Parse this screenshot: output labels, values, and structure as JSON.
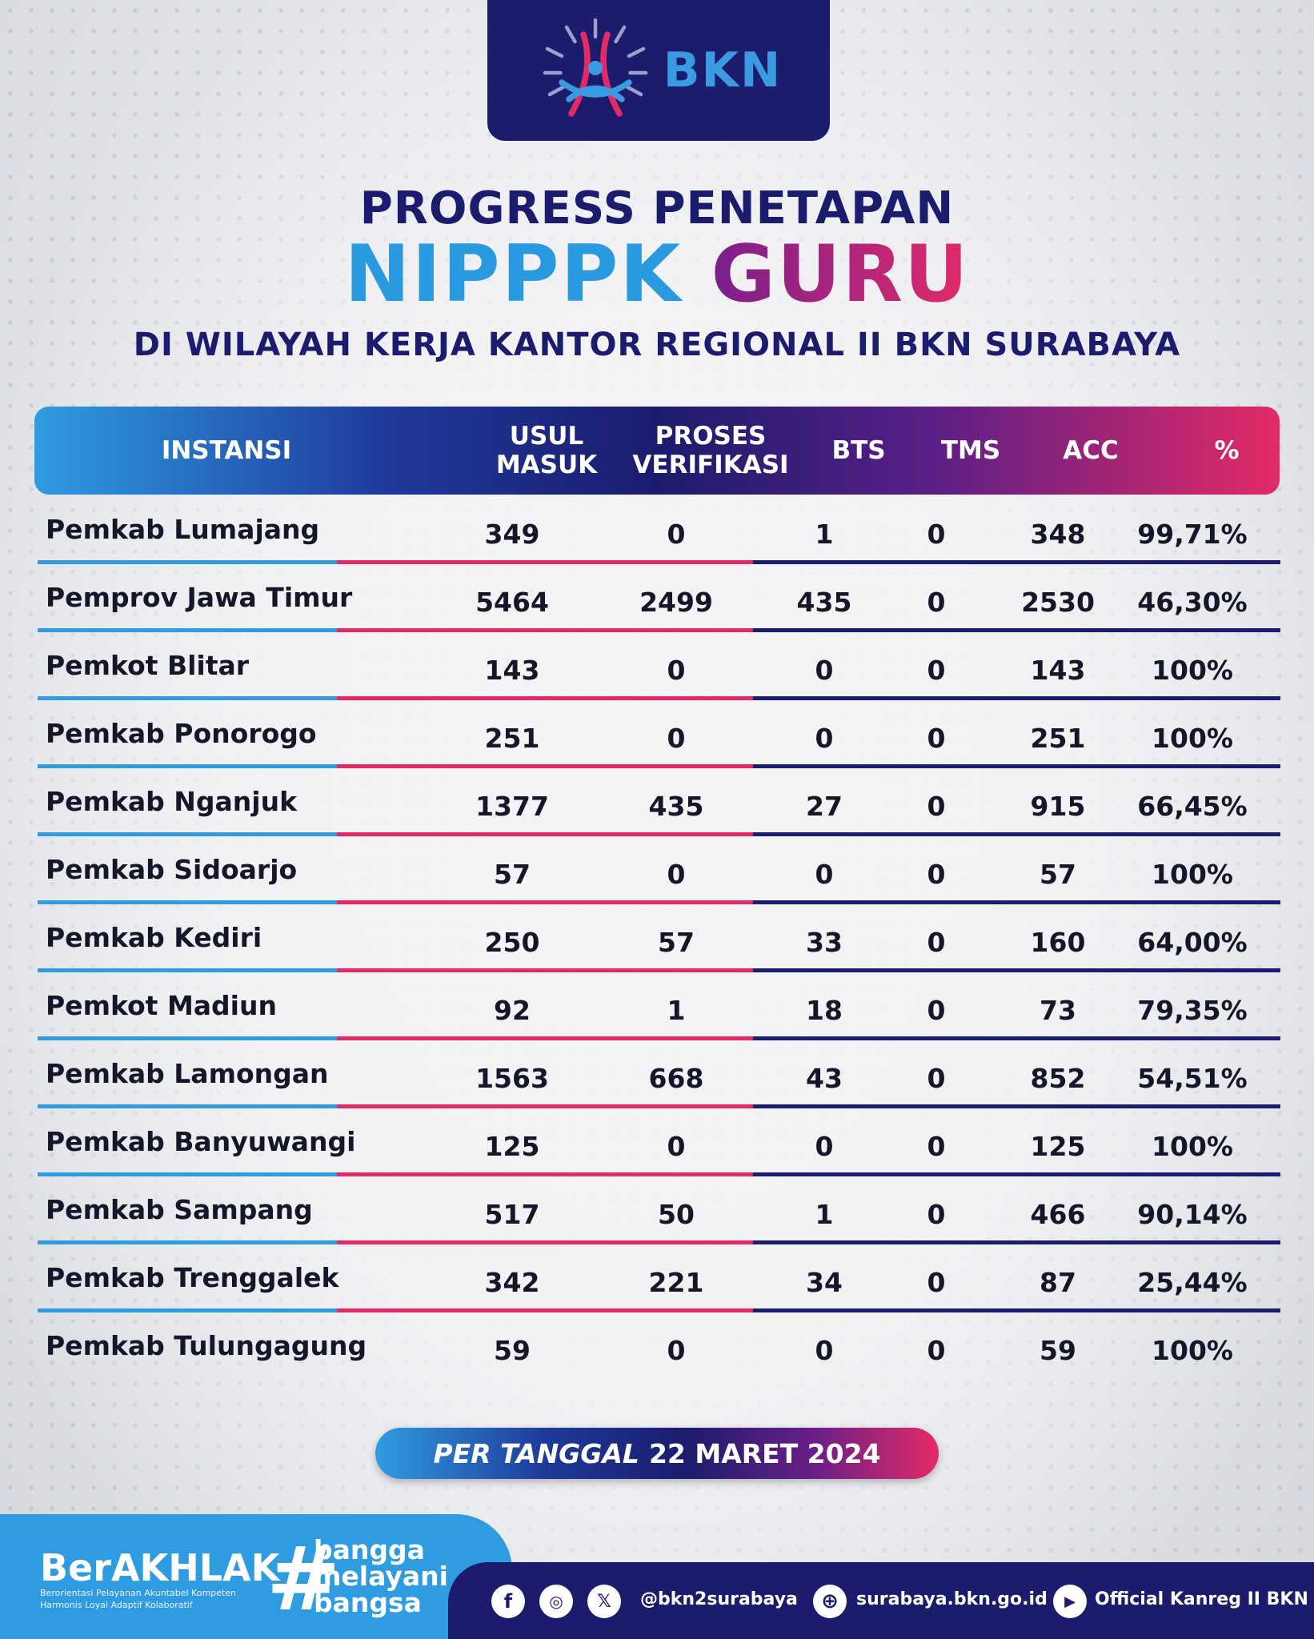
{
  "logo": {
    "text": "BKN"
  },
  "title": {
    "line1": "PROGRESS PENETAPAN",
    "line2a": "NIPPPK",
    "line2b": "GURU",
    "line3": "DI WILAYAH KERJA KANTOR REGIONAL II BKN SURABAYA"
  },
  "table": {
    "headers": {
      "instansi": "INSTANSI",
      "usul_1": "USUL",
      "usul_2": "MASUK",
      "proses_1": "PROSES",
      "proses_2": "VERIFIKASI",
      "bts": "BTS",
      "tms": "TMS",
      "acc": "ACC",
      "pct": "%"
    },
    "rows": [
      {
        "instansi": "Pemkab Lumajang",
        "usul": "349",
        "proses": "0",
        "bts": "1",
        "tms": "0",
        "acc": "348",
        "pct": "99,71%"
      },
      {
        "instansi": "Pemprov Jawa Timur",
        "usul": "5464",
        "proses": "2499",
        "bts": "435",
        "tms": "0",
        "acc": "2530",
        "pct": "46,30%"
      },
      {
        "instansi": "Pemkot Blitar",
        "usul": "143",
        "proses": "0",
        "bts": "0",
        "tms": "0",
        "acc": "143",
        "pct": "100%"
      },
      {
        "instansi": "Pemkab Ponorogo",
        "usul": "251",
        "proses": "0",
        "bts": "0",
        "tms": "0",
        "acc": "251",
        "pct": "100%"
      },
      {
        "instansi": "Pemkab Nganjuk",
        "usul": "1377",
        "proses": "435",
        "bts": "27",
        "tms": "0",
        "acc": "915",
        "pct": "66,45%"
      },
      {
        "instansi": "Pemkab Sidoarjo",
        "usul": "57",
        "proses": "0",
        "bts": "0",
        "tms": "0",
        "acc": "57",
        "pct": "100%"
      },
      {
        "instansi": "Pemkab Kediri",
        "usul": "250",
        "proses": "57",
        "bts": "33",
        "tms": "0",
        "acc": "160",
        "pct": "64,00%"
      },
      {
        "instansi": "Pemkot Madiun",
        "usul": "92",
        "proses": "1",
        "bts": "18",
        "tms": "0",
        "acc": "73",
        "pct": "79,35%"
      },
      {
        "instansi": "Pemkab Lamongan",
        "usul": "1563",
        "proses": "668",
        "bts": "43",
        "tms": "0",
        "acc": "852",
        "pct": "54,51%"
      },
      {
        "instansi": "Pemkab Banyuwangi",
        "usul": "125",
        "proses": "0",
        "bts": "0",
        "tms": "0",
        "acc": "125",
        "pct": "100%"
      },
      {
        "instansi": "Pemkab Sampang",
        "usul": "517",
        "proses": "50",
        "bts": "1",
        "tms": "0",
        "acc": "466",
        "pct": "90,14%"
      },
      {
        "instansi": "Pemkab Trenggalek",
        "usul": "342",
        "proses": "221",
        "bts": "34",
        "tms": "0",
        "acc": "87",
        "pct": "25,44%"
      },
      {
        "instansi": "Pemkab Tulungagung",
        "usul": "59",
        "proses": "0",
        "bts": "0",
        "tms": "0",
        "acc": "59",
        "pct": "100%"
      }
    ]
  },
  "date": {
    "prefix": "PER TANGGAL",
    "value": "22 MARET 2024"
  },
  "footer": {
    "berakhlak": "BerAKHLAK",
    "berakhlak_sub": "Berorientasi Pelayanan Akuntabel Kompeten Harmonis Loyal Adaptif Kolaboratif",
    "hashtag_1": "bangga",
    "hashtag_2": "melayani",
    "hashtag_3": "bangsa",
    "social_handle": "@bkn2surabaya",
    "website": "surabaya.bkn.go.id",
    "youtube": "Official Kanreg II BKN"
  },
  "colors": {
    "navy": "#1b1c6e",
    "blue": "#2f9ce2",
    "pink": "#e32a66",
    "purple": "#5a1f86"
  },
  "icons": [
    "facebook-icon",
    "instagram-icon",
    "x-icon",
    "globe-icon",
    "youtube-icon"
  ]
}
